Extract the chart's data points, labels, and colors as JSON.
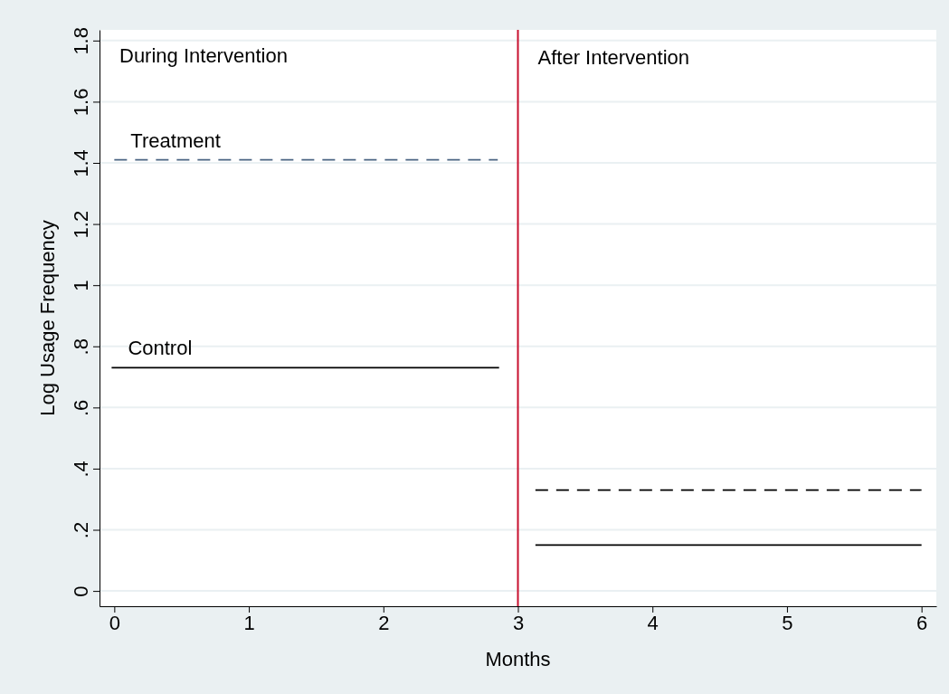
{
  "chart_data": {
    "type": "line",
    "xlabel": "Months",
    "ylabel": "Log Usage Frequency",
    "xlim": [
      -0.11,
      6.11
    ],
    "ylim": [
      -0.05,
      1.835
    ],
    "xticks": [
      0,
      1,
      2,
      3,
      4,
      5,
      6
    ],
    "yticks": [
      0,
      {
        "value": 0.2,
        "label": ".2"
      },
      {
        "value": 0.4,
        "label": ".4"
      },
      {
        "value": 0.6,
        "label": ".6"
      },
      {
        "value": 0.8,
        "label": ".8"
      },
      1,
      1.2,
      1.4,
      1.6,
      1.8
    ],
    "grid": "y",
    "marker": "none",
    "series": [
      {
        "name": "Treatment",
        "color": "#4a6482",
        "line_style": "dashed",
        "x": [
          0,
          2.85
        ],
        "values": [
          1.41,
          1.41
        ]
      },
      {
        "name": "Control",
        "color": "#000000",
        "line_style": "solid",
        "x": [
          -0.02,
          2.86
        ],
        "values": [
          0.73,
          0.73
        ]
      },
      {
        "color": "#000000",
        "line_style": "dashed",
        "x": [
          3.13,
          6
        ],
        "values": [
          0.33,
          0.33
        ]
      },
      {
        "color": "#000000",
        "line_style": "solid",
        "x": [
          3.13,
          6
        ],
        "values": [
          0.15,
          0.15
        ]
      }
    ],
    "ref_lines": [
      {
        "axis": "x",
        "value": 3,
        "color": "#c8102e"
      }
    ],
    "annotations": [
      "During Intervention",
      "After Intervention"
    ]
  }
}
